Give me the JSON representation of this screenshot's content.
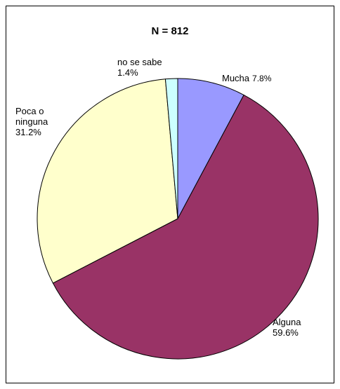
{
  "chart_data": {
    "type": "pie",
    "title": "N = 812",
    "categories": [
      "Mucha",
      "Alguna",
      "Poca o ninguna",
      "no se sabe"
    ],
    "values": [
      7.8,
      59.6,
      31.2,
      1.4
    ],
    "value_labels": [
      "7.8%",
      "59.6%",
      "31.2%",
      "1.4%"
    ],
    "colors": [
      "#9999ff",
      "#993366",
      "#ffffcc",
      "#ccffff"
    ]
  }
}
